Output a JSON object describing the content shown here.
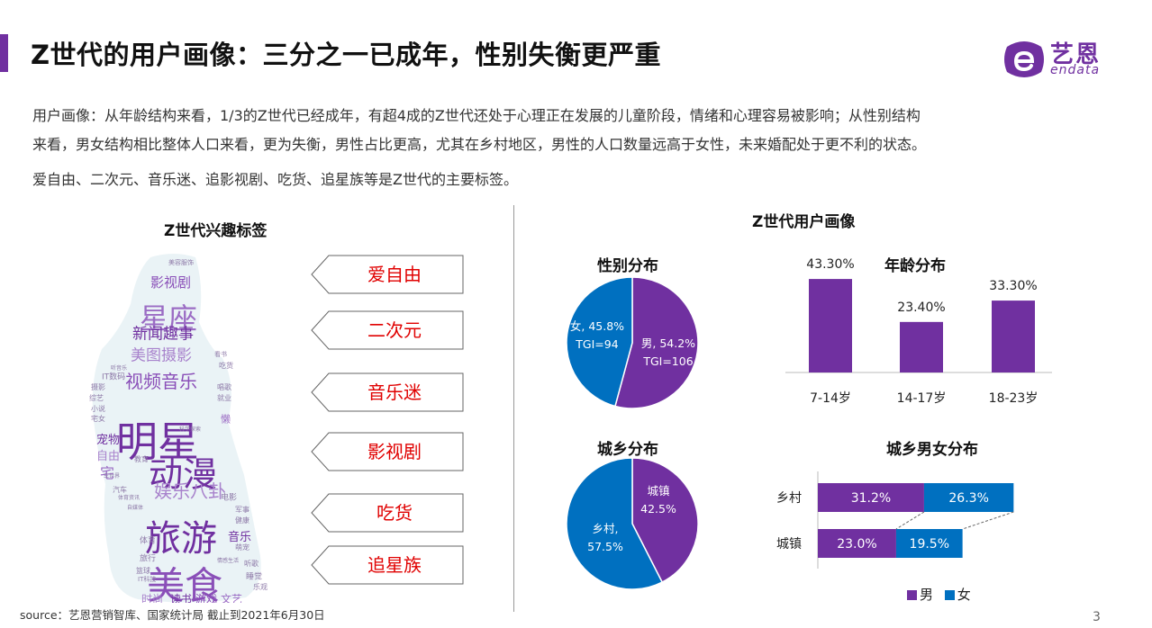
{
  "header": {
    "title": "Z世代的用户画像：三分之一已成年，性别失衡更严重",
    "logo_cn": "艺恩",
    "logo_en": "endata"
  },
  "description": {
    "line1": "用户画像：从年龄结构来看，1/3的Z世代已经成年，有超4成的Z世代还处于心理正在发展的儿童阶段，情绪和心理容易被影响；从性别结构",
    "line2": "来看，男女结构相比整体人口来看，更为失衡，男性占比更高，尤其在乡村地区，男性的人口数量远高于女性，未来婚配处于更不利的状态。",
    "tags_line": "爱自由、二次元、音乐迷、追影视剧、吃货、追星族等是Z世代的主要标签。"
  },
  "left_panel": {
    "title": "Z世代兴趣标签",
    "tags": [
      "爱自由",
      "二次元",
      "音乐迷",
      "影视剧",
      "吃货",
      "追星族"
    ],
    "wordcloud": [
      {
        "text": "美容服饰",
        "size": 7
      },
      {
        "text": "影视剧",
        "size": 15
      },
      {
        "text": "星座",
        "size": 32
      },
      {
        "text": "新闻趣事",
        "size": 17
      },
      {
        "text": "美图摄影",
        "size": 17
      },
      {
        "text": "看书",
        "size": 7
      },
      {
        "text": "视频音乐",
        "size": 20
      },
      {
        "text": "吃货",
        "size": 8
      },
      {
        "text": "IT数码",
        "size": 9
      },
      {
        "text": "听音乐",
        "size": 6
      },
      {
        "text": "唱歌",
        "size": 8
      },
      {
        "text": "综艺",
        "size": 8
      },
      {
        "text": "摄影",
        "size": 8
      },
      {
        "text": "明星",
        "size": 46
      },
      {
        "text": "就业",
        "size": 8
      },
      {
        "text": "小说",
        "size": 8
      },
      {
        "text": "宅女",
        "size": 8
      },
      {
        "text": "懒",
        "size": 11
      },
      {
        "text": "宠物",
        "size": 13
      },
      {
        "text": "自由",
        "size": 13
      },
      {
        "text": "动漫",
        "size": 38
      },
      {
        "text": "科学探索",
        "size": 6
      },
      {
        "text": "宅",
        "size": 16
      },
      {
        "text": "教育",
        "size": 8
      },
      {
        "text": "娱乐八卦",
        "size": 20
      },
      {
        "text": "车世界",
        "size": 6
      },
      {
        "text": "汽车",
        "size": 8
      },
      {
        "text": "电影",
        "size": 9
      },
      {
        "text": "体育资讯",
        "size": 6
      },
      {
        "text": "自媒体",
        "size": 6
      },
      {
        "text": "旅游",
        "size": 40
      },
      {
        "text": "军事",
        "size": 8
      },
      {
        "text": "健康",
        "size": 8
      },
      {
        "text": "音乐",
        "size": 13
      },
      {
        "text": "体育",
        "size": 9
      },
      {
        "text": "萌宠",
        "size": 8
      },
      {
        "text": "美食",
        "size": 42
      },
      {
        "text": "旅行",
        "size": 9
      },
      {
        "text": "情感生活",
        "size": 6
      },
      {
        "text": "听歌",
        "size": 8
      },
      {
        "text": "篮球",
        "size": 8
      },
      {
        "text": "IT科技",
        "size": 7
      },
      {
        "text": "睡觉",
        "size": 9
      },
      {
        "text": "乐观",
        "size": 8
      },
      {
        "text": "时尚",
        "size": 12
      },
      {
        "text": "读书",
        "size": 12
      },
      {
        "text": "游戏",
        "size": 12
      },
      {
        "text": "文艺",
        "size": 12
      }
    ]
  },
  "right_panel": {
    "title": "Z世代用户画像",
    "gender": {
      "title": "性别分布",
      "female_label": "女, 45.8%",
      "female_tgi": "TGI=94",
      "male_label": "男, 54.2%",
      "male_tgi": "TGI=106"
    },
    "urban_rural": {
      "title": "城乡分布",
      "urban_label": "城镇",
      "urban_pct": "42.5%",
      "rural_label": "乡村,",
      "rural_pct": "57.5%"
    },
    "age": {
      "title": "年龄分布"
    },
    "urban_rural_gender": {
      "title": "城乡男女分布"
    },
    "legend": {
      "male": "男",
      "female": "女"
    }
  },
  "chart_data": [
    {
      "type": "pie",
      "title": "性别分布",
      "labels": [
        "男",
        "女"
      ],
      "values": [
        54.2,
        45.8
      ],
      "tgi": [
        106,
        94
      ],
      "colors": [
        "#7030a0",
        "#0070c0"
      ]
    },
    {
      "type": "pie",
      "title": "城乡分布",
      "labels": [
        "城镇",
        "乡村"
      ],
      "values": [
        42.5,
        57.5
      ],
      "colors": [
        "#7030a0",
        "#0070c0"
      ]
    },
    {
      "type": "bar",
      "title": "年龄分布",
      "categories": [
        "7-14岁",
        "14-17岁",
        "18-23岁"
      ],
      "values": [
        43.3,
        23.4,
        33.3
      ],
      "value_labels": [
        "43.30%",
        "23.40%",
        "33.30%"
      ],
      "color": "#7030a0",
      "ylim": [
        0,
        50
      ]
    },
    {
      "type": "bar",
      "title": "城乡男女分布",
      "stacked": true,
      "orientation": "horizontal",
      "categories": [
        "乡村",
        "城镇"
      ],
      "series": [
        {
          "name": "男",
          "values": [
            31.2,
            23.0
          ],
          "labels": [
            "31.2%",
            "23.0%"
          ],
          "color": "#7030a0"
        },
        {
          "name": "女",
          "values": [
            26.3,
            19.5
          ],
          "labels": [
            "26.3%",
            "19.5%"
          ],
          "color": "#0070c0"
        }
      ],
      "legend": "bottom"
    }
  ],
  "footer": {
    "source": "source：艺恩营销智库、国家统计局    截止到2021年6月30日",
    "page_number": "3"
  },
  "colors": {
    "purple": "#7030a0",
    "blue": "#0070c0",
    "red": "#e00000"
  }
}
